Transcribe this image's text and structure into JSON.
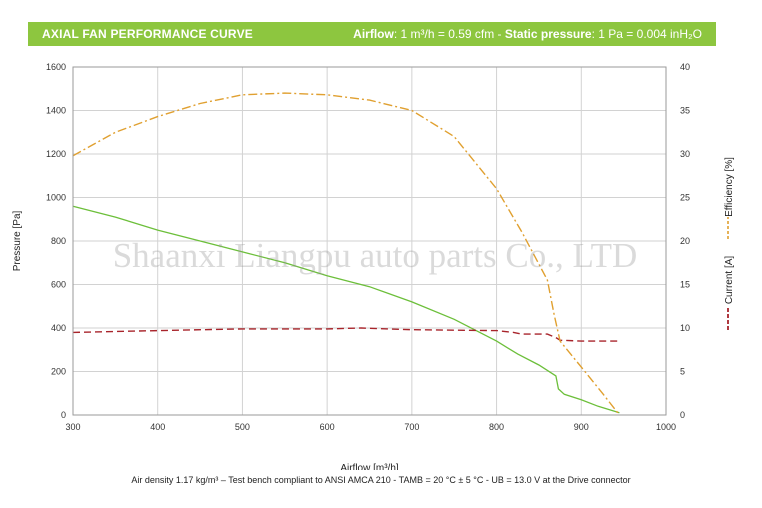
{
  "header": {
    "title": "AXIAL FAN PERFORMANCE CURVE",
    "airflow_label": "Airflow",
    "airflow_conv": ": 1 m³/h = 0.59 cfm - ",
    "pressure_label": "Static pressure",
    "pressure_conv": ": 1 Pa = 0.004 inH₂O"
  },
  "footnote": "Air density 1.17 kg/m³ – Test bench compliant to ANSI AMCA 210 - TAMB = 20 °C ± 5 °C - UB = 13.0 V at the Drive connector",
  "watermark": "Shaanxi Liangpu auto parts Co., LTD",
  "colors": {
    "banner": "#8dc63f",
    "pressure": "#6cbf3a",
    "current": "#a8242b",
    "efficiency": "#e0a030",
    "grid": "#d2d2d2"
  },
  "chart_data": {
    "type": "line",
    "xlabel": "Airflow [m³/h]",
    "ylabel": "Pressure [Pa]",
    "y2label_current": "Current [A]",
    "y2label_efficiency": "Efficiency [%]",
    "xlim": [
      300,
      1000
    ],
    "ylim": [
      0,
      1600
    ],
    "y2lim": [
      0,
      40
    ],
    "x_ticks": [
      300,
      400,
      500,
      600,
      700,
      800,
      900,
      1000
    ],
    "y_ticks": [
      0,
      200,
      400,
      600,
      800,
      1000,
      1200,
      1400,
      1600
    ],
    "y2_ticks": [
      0,
      5,
      10,
      15,
      20,
      25,
      30,
      35,
      40
    ],
    "grid": true,
    "series": [
      {
        "key": "pressure",
        "axis": "left",
        "style": "solid",
        "x": [
          300,
          350,
          400,
          450,
          500,
          550,
          600,
          650,
          700,
          750,
          800,
          825,
          850,
          870,
          873,
          880,
          900,
          920,
          945
        ],
        "y": [
          960,
          910,
          850,
          800,
          750,
          700,
          640,
          590,
          520,
          440,
          340,
          280,
          230,
          180,
          120,
          95,
          70,
          40,
          10
        ]
      },
      {
        "key": "current",
        "name": "Current [A]",
        "axis": "right",
        "style": "dashed",
        "x": [
          300,
          400,
          500,
          600,
          640,
          700,
          800,
          820,
          830,
          860,
          870,
          875,
          900,
          945
        ],
        "y": [
          9.5,
          9.7,
          9.9,
          9.9,
          10.0,
          9.8,
          9.7,
          9.5,
          9.3,
          9.3,
          8.9,
          8.6,
          8.5,
          8.5
        ]
      },
      {
        "key": "efficiency",
        "name": "Efficiency [%]",
        "axis": "right",
        "style": "dashdot",
        "x": [
          300,
          350,
          400,
          450,
          500,
          550,
          600,
          650,
          700,
          750,
          800,
          830,
          860,
          868,
          875,
          900,
          925,
          945
        ],
        "y": [
          29.8,
          32.5,
          34.3,
          35.8,
          36.8,
          37.0,
          36.8,
          36.2,
          35.0,
          32.0,
          26.0,
          21.0,
          15.5,
          11.5,
          8.5,
          5.5,
          2.5,
          0
        ]
      }
    ]
  }
}
